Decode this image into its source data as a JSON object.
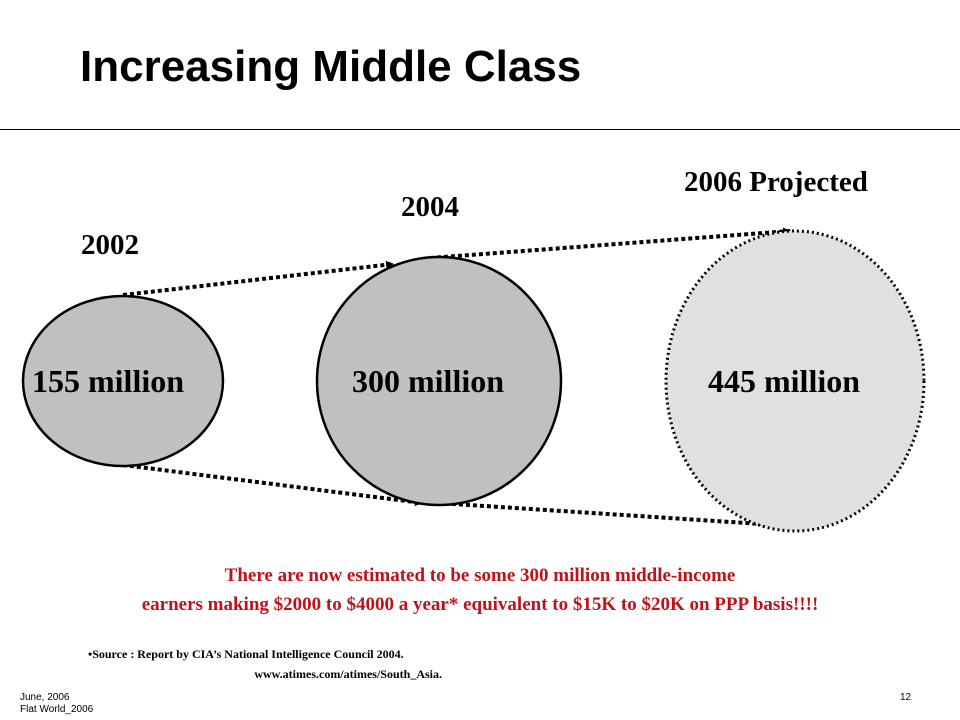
{
  "slide": {
    "title": "Increasing Middle Class"
  },
  "diagram": {
    "stages": [
      {
        "year": "2002",
        "value_label": "155 million",
        "fill": "#c0c0c0"
      },
      {
        "year": "2004",
        "value_label": "300 million",
        "fill": "#c0c0c0"
      },
      {
        "year": "2006 Projected",
        "value_label": "445 million",
        "fill": "#e0e0e0"
      }
    ]
  },
  "note": {
    "line1": "There are now estimated to be some 300 million middle-income",
    "line2": "earners making $2000 to $4000 a year* equivalent to $15K to $20K on PPP basis!!!!",
    "color": "#c0111b"
  },
  "source": {
    "bullet": "•",
    "line1": "Source : Report by CIA’s  National Intelligence Council 2004.",
    "line2": "www.atimes.com/atimes/South_Asia."
  },
  "footer": {
    "date": "June, 2006",
    "deck": "Flat World_2006",
    "page_number": "12"
  }
}
